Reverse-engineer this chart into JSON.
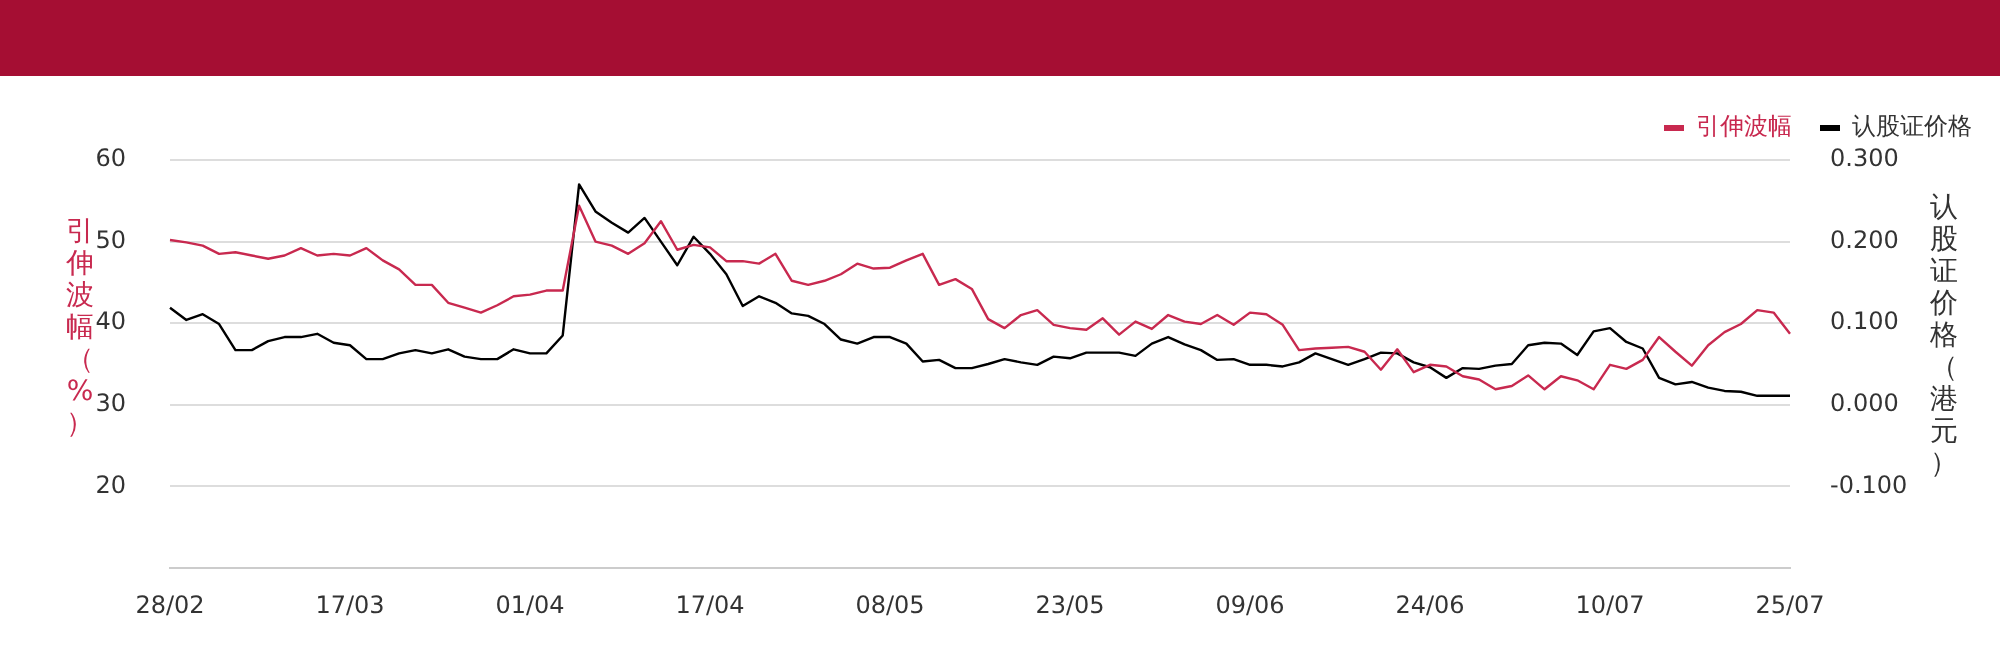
{
  "chart_data": {
    "type": "line",
    "ylabel": "引伸波幅（%）",
    "y2label": "认股证价格（港元）",
    "categories": [
      "28/02",
      null,
      null,
      null,
      null,
      null,
      null,
      null,
      null,
      null,
      null,
      "17/03",
      null,
      null,
      null,
      null,
      null,
      null,
      null,
      null,
      null,
      null,
      "01/04",
      null,
      null,
      null,
      null,
      null,
      null,
      null,
      null,
      null,
      null,
      "17/04",
      null,
      null,
      null,
      null,
      null,
      null,
      null,
      null,
      null,
      null,
      "08/05",
      null,
      null,
      null,
      null,
      null,
      null,
      null,
      null,
      null,
      null,
      "23/05",
      null,
      null,
      null,
      null,
      null,
      null,
      null,
      null,
      null,
      null,
      "09/06",
      null,
      null,
      null,
      null,
      null,
      null,
      null,
      null,
      null,
      null,
      "24/06",
      null,
      null,
      null,
      null,
      null,
      null,
      null,
      null,
      null,
      null,
      "10/07",
      null,
      null,
      null,
      null,
      null,
      null,
      null,
      null,
      null,
      null,
      "25/07"
    ],
    "series": [
      {
        "name": "引伸波幅",
        "color": "#c8294f",
        "values": [
          50.2,
          49.9,
          49.5,
          48.5,
          48.7,
          48.3,
          47.9,
          48.3,
          49.2,
          48.3,
          48.5,
          48.3,
          49.2,
          47.7,
          46.6,
          44.7,
          44.7,
          42.5,
          41.9,
          41.3,
          42.2,
          43.3,
          43.5,
          44.0,
          44.0,
          54.4,
          50.0,
          49.5,
          48.5,
          49.8,
          52.5,
          49.0,
          49.6,
          49.3,
          47.6,
          47.6,
          47.3,
          48.5,
          45.2,
          44.7,
          45.2,
          46.0,
          47.3,
          46.7,
          46.8,
          47.7,
          48.5,
          44.7,
          45.4,
          44.2,
          40.5,
          39.4,
          41.0,
          41.6,
          39.8,
          39.4,
          39.2,
          40.6,
          38.6,
          40.2,
          39.3,
          41.0,
          40.2,
          39.9,
          41.0,
          39.8,
          41.3,
          41.1,
          39.8,
          36.7,
          36.9,
          37.0,
          37.1,
          36.5,
          34.3,
          36.8,
          34.0,
          34.9,
          34.7,
          33.5,
          33.1,
          31.9,
          32.3,
          33.6,
          31.9,
          33.5,
          33.0,
          31.9,
          34.9,
          34.4,
          35.5,
          38.3,
          36.5,
          34.8,
          37.3,
          38.9,
          39.9,
          41.6,
          41.3,
          38.7
        ]
      },
      {
        "name": "认股证价格",
        "color": "#000000",
        "axis": "y2",
        "values": [
          0.119,
          0.104,
          0.111,
          0.099,
          0.067,
          0.067,
          0.078,
          0.083,
          0.083,
          0.087,
          0.076,
          0.073,
          0.056,
          0.056,
          0.063,
          0.067,
          0.063,
          0.068,
          0.059,
          0.056,
          0.056,
          0.068,
          0.063,
          0.063,
          0.085,
          0.27,
          0.237,
          0.223,
          0.211,
          0.229,
          0.2,
          0.171,
          0.206,
          0.185,
          0.16,
          0.121,
          0.133,
          0.125,
          0.112,
          0.109,
          0.099,
          0.08,
          0.075,
          0.083,
          0.083,
          0.075,
          0.053,
          0.055,
          0.045,
          0.045,
          0.05,
          0.056,
          0.052,
          0.049,
          0.059,
          0.057,
          0.064,
          0.064,
          0.064,
          0.06,
          0.075,
          0.083,
          0.074,
          0.067,
          0.055,
          0.056,
          0.049,
          0.049,
          0.047,
          0.052,
          0.063,
          0.056,
          0.049,
          0.056,
          0.064,
          0.063,
          0.052,
          0.046,
          0.033,
          0.045,
          0.044,
          0.048,
          0.05,
          0.073,
          0.076,
          0.075,
          0.061,
          0.09,
          0.094,
          0.077,
          0.069,
          0.033,
          0.025,
          0.028,
          0.021,
          0.017,
          0.016,
          0.011,
          0.011,
          0.011
        ]
      }
    ],
    "ylim": [
      10,
      60
    ],
    "yticks": [
      20,
      30,
      40,
      50,
      60
    ],
    "y2lim": [
      -0.2,
      0.3
    ],
    "y2ticks": [
      {
        "value": -0.1,
        "label": "-0.100"
      },
      {
        "value": 0,
        "label": "0.000"
      },
      {
        "value": 0.1,
        "label": "0.100"
      },
      {
        "value": 0.2,
        "label": "0.200"
      },
      {
        "value": 0.3,
        "label": "0.300"
      }
    ],
    "grid": "y",
    "legend": "top right",
    "marker": "none",
    "line_style": "solid"
  }
}
